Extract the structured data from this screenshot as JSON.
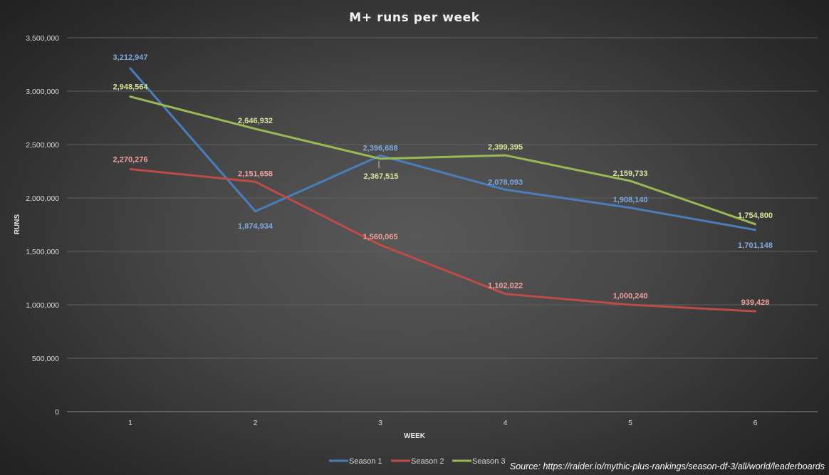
{
  "colors": {
    "background": "#3f3f3f",
    "gridline": "#5f5f5f",
    "axis_line": "#8a8a8a",
    "season1": "#4a7ebb",
    "season2": "#be4b48",
    "season3": "#98b954",
    "season1_label": "#7fa8e0",
    "season2_label": "#f0a0a0",
    "season3_label": "#d8e69a"
  },
  "chart_data": {
    "type": "line",
    "title": "M+ runs  per week",
    "xlabel": "WEEK",
    "ylabel": "RUNS",
    "x": [
      1,
      2,
      3,
      4,
      5,
      6
    ],
    "ylim": [
      0,
      3500000
    ],
    "ytick_values": [
      0,
      500000,
      1000000,
      1500000,
      2000000,
      2500000,
      3000000,
      3500000
    ],
    "ytick_labels": [
      "0",
      "500,000",
      "1,000,000",
      "1,500,000",
      "2,000,000",
      "2,500,000",
      "3,000,000",
      "3,500,000"
    ],
    "xtick_labels": [
      "1",
      "2",
      "3",
      "4",
      "5",
      "6"
    ],
    "grid": true,
    "legend": "bottom",
    "series": [
      {
        "name": "Season 1",
        "color": "#4a7ebb",
        "label_color": "#7fa8e0",
        "values": [
          3212947,
          1874934,
          2396688,
          2078093,
          1908140,
          1701148
        ],
        "labels": [
          "3,212,947",
          "1,874,934",
          "2,396,688",
          "2,078,093",
          "1,908,140",
          "1,701,148"
        ]
      },
      {
        "name": "Season 2",
        "color": "#be4b48",
        "label_color": "#f0a0a0",
        "values": [
          2270276,
          2151658,
          1560065,
          1102022,
          1000240,
          939428
        ],
        "labels": [
          "2,270,276",
          "2,151,658",
          "1,560,065",
          "1,102,022",
          "1,000,240",
          "939,428"
        ]
      },
      {
        "name": "Season 3",
        "color": "#98b954",
        "label_color": "#d8e69a",
        "values": [
          2948564,
          2646932,
          2367515,
          2399395,
          2159733,
          1754800
        ],
        "labels": [
          "2,948,564",
          "2,646,932",
          "2,367,515",
          "2,399,395",
          "2,159,733",
          "1,754,800"
        ]
      }
    ],
    "annotations": {
      "source": "Source: https://raider.io/mythic-plus-rankings/season-df-3/all/world/leaderboards"
    }
  }
}
